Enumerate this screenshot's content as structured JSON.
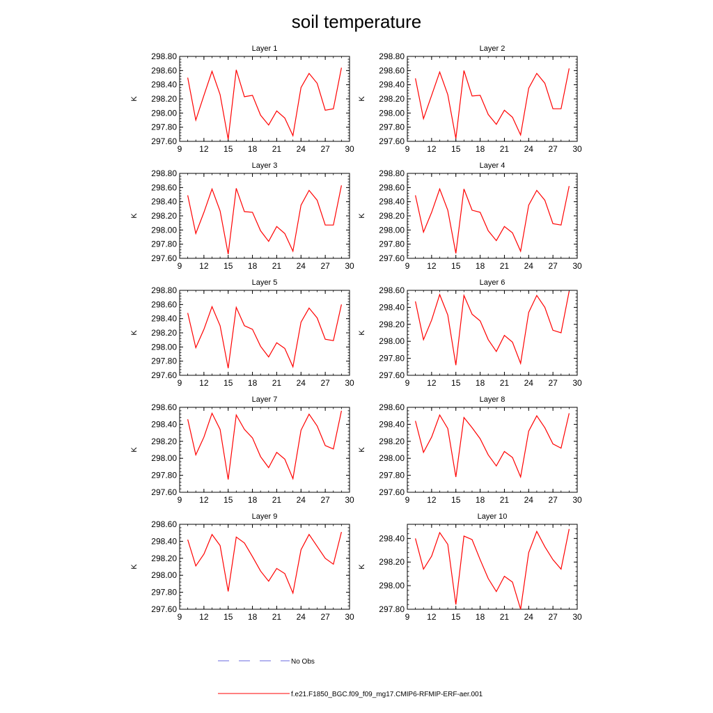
{
  "figure": {
    "title": "soil temperature",
    "legend": [
      {
        "label": "No Obs",
        "color": "#6a6adf",
        "style": "dashed"
      },
      {
        "label": "f.e21.F1850_BGC.f09_f09_mg17.CMIP6-RFMIP-ERF-aer.001",
        "color": "#ff0000",
        "style": "solid"
      }
    ]
  },
  "chart_data": [
    {
      "type": "line",
      "title": "Layer 1",
      "ylabel": "K",
      "xlim": [
        9,
        30
      ],
      "ylim": [
        297.6,
        298.8
      ],
      "xticks": [
        9,
        12,
        15,
        18,
        21,
        24,
        27,
        30
      ],
      "yticks": [
        "297.60",
        "297.80",
        "298.00",
        "298.20",
        "298.40",
        "298.60",
        "298.80"
      ],
      "x": [
        10,
        11,
        12,
        13,
        14,
        15,
        16,
        17,
        18,
        19,
        20,
        21,
        22,
        23,
        24,
        25,
        26,
        27,
        28,
        29
      ],
      "series": [
        {
          "color": "#ff0000",
          "values": [
            298.5,
            297.9,
            298.25,
            298.59,
            298.26,
            297.63,
            298.61,
            298.23,
            298.25,
            297.97,
            297.83,
            298.03,
            297.93,
            297.68,
            298.36,
            298.56,
            298.42,
            298.04,
            298.06,
            298.64
          ]
        }
      ]
    },
    {
      "type": "line",
      "title": "Layer 2",
      "ylabel": "K",
      "xlim": [
        9,
        30
      ],
      "ylim": [
        297.6,
        298.8
      ],
      "xticks": [
        9,
        12,
        15,
        18,
        21,
        24,
        27,
        30
      ],
      "yticks": [
        "297.60",
        "297.80",
        "298.00",
        "298.20",
        "298.40",
        "298.60",
        "298.80"
      ],
      "x": [
        10,
        11,
        12,
        13,
        14,
        15,
        16,
        17,
        18,
        19,
        20,
        21,
        22,
        23,
        24,
        25,
        26,
        27,
        28,
        29
      ],
      "series": [
        {
          "color": "#ff0000",
          "values": [
            298.49,
            297.92,
            298.25,
            298.58,
            298.26,
            297.64,
            298.6,
            298.24,
            298.25,
            297.98,
            297.84,
            298.04,
            297.94,
            297.69,
            298.35,
            298.56,
            298.42,
            298.06,
            298.06,
            298.63
          ]
        }
      ]
    },
    {
      "type": "line",
      "title": "Layer 3",
      "ylabel": "K",
      "xlim": [
        9,
        30
      ],
      "ylim": [
        297.6,
        298.8
      ],
      "xticks": [
        9,
        12,
        15,
        18,
        21,
        24,
        27,
        30
      ],
      "yticks": [
        "297.60",
        "297.80",
        "298.00",
        "298.20",
        "298.40",
        "298.60",
        "298.80"
      ],
      "x": [
        10,
        11,
        12,
        13,
        14,
        15,
        16,
        17,
        18,
        19,
        20,
        21,
        22,
        23,
        24,
        25,
        26,
        27,
        28,
        29
      ],
      "series": [
        {
          "color": "#ff0000",
          "values": [
            298.49,
            297.95,
            298.25,
            298.58,
            298.27,
            297.66,
            298.59,
            298.26,
            298.25,
            297.99,
            297.84,
            298.05,
            297.95,
            297.7,
            298.35,
            298.56,
            298.42,
            298.07,
            298.07,
            298.63
          ]
        }
      ]
    },
    {
      "type": "line",
      "title": "Layer 4",
      "ylabel": "K",
      "xlim": [
        9,
        30
      ],
      "ylim": [
        297.6,
        298.8
      ],
      "xticks": [
        9,
        12,
        15,
        18,
        21,
        24,
        27,
        30
      ],
      "yticks": [
        "297.60",
        "297.80",
        "298.00",
        "298.20",
        "298.40",
        "298.60",
        "298.80"
      ],
      "x": [
        10,
        11,
        12,
        13,
        14,
        15,
        16,
        17,
        18,
        19,
        20,
        21,
        22,
        23,
        24,
        25,
        26,
        27,
        28,
        29
      ],
      "series": [
        {
          "color": "#ff0000",
          "values": [
            298.49,
            297.97,
            298.25,
            298.58,
            298.28,
            297.67,
            298.58,
            298.28,
            298.25,
            297.99,
            297.85,
            298.05,
            297.96,
            297.7,
            298.35,
            298.56,
            298.42,
            298.09,
            298.07,
            298.62
          ]
        }
      ]
    },
    {
      "type": "line",
      "title": "Layer 5",
      "ylabel": "K",
      "xlim": [
        9,
        30
      ],
      "ylim": [
        297.6,
        298.8
      ],
      "xticks": [
        9,
        12,
        15,
        18,
        21,
        24,
        27,
        30
      ],
      "yticks": [
        "297.60",
        "297.80",
        "298.00",
        "298.20",
        "298.40",
        "298.60",
        "298.80"
      ],
      "x": [
        10,
        11,
        12,
        13,
        14,
        15,
        16,
        17,
        18,
        19,
        20,
        21,
        22,
        23,
        24,
        25,
        26,
        27,
        28,
        29
      ],
      "series": [
        {
          "color": "#ff0000",
          "values": [
            298.48,
            297.99,
            298.25,
            298.57,
            298.3,
            297.7,
            298.56,
            298.3,
            298.25,
            298.01,
            297.86,
            298.06,
            297.98,
            297.72,
            298.35,
            298.55,
            298.41,
            298.11,
            298.09,
            298.6
          ]
        }
      ]
    },
    {
      "type": "line",
      "title": "Layer 6",
      "ylabel": "K",
      "xlim": [
        9,
        30
      ],
      "ylim": [
        297.6,
        298.6
      ],
      "xticks": [
        9,
        12,
        15,
        18,
        21,
        24,
        27,
        30
      ],
      "yticks": [
        "297.60",
        "297.80",
        "298.00",
        "298.20",
        "298.40",
        "298.60"
      ],
      "x": [
        10,
        11,
        12,
        13,
        14,
        15,
        16,
        17,
        18,
        19,
        20,
        21,
        22,
        23,
        24,
        25,
        26,
        27,
        28,
        29
      ],
      "series": [
        {
          "color": "#ff0000",
          "values": [
            298.47,
            298.02,
            298.25,
            298.55,
            298.31,
            297.72,
            298.54,
            298.32,
            298.24,
            298.02,
            297.88,
            298.07,
            297.99,
            297.74,
            298.34,
            298.54,
            298.4,
            298.13,
            298.1,
            298.59
          ]
        }
      ]
    },
    {
      "type": "line",
      "title": "Layer 7",
      "ylabel": "K",
      "xlim": [
        9,
        30
      ],
      "ylim": [
        297.6,
        298.6
      ],
      "xticks": [
        9,
        12,
        15,
        18,
        21,
        24,
        27,
        30
      ],
      "yticks": [
        "297.60",
        "297.80",
        "298.00",
        "298.20",
        "298.40",
        "298.60"
      ],
      "x": [
        10,
        11,
        12,
        13,
        14,
        15,
        16,
        17,
        18,
        19,
        20,
        21,
        22,
        23,
        24,
        25,
        26,
        27,
        28,
        29
      ],
      "series": [
        {
          "color": "#ff0000",
          "values": [
            298.46,
            298.04,
            298.25,
            298.53,
            298.34,
            297.75,
            298.51,
            298.34,
            298.24,
            298.02,
            297.89,
            298.07,
            297.99,
            297.76,
            298.33,
            298.52,
            298.38,
            298.15,
            298.11,
            298.56
          ]
        }
      ]
    },
    {
      "type": "line",
      "title": "Layer 8",
      "ylabel": "K",
      "xlim": [
        9,
        30
      ],
      "ylim": [
        297.6,
        298.6
      ],
      "xticks": [
        9,
        12,
        15,
        18,
        21,
        24,
        27,
        30
      ],
      "yticks": [
        "297.60",
        "297.80",
        "298.00",
        "298.20",
        "298.40",
        "298.60"
      ],
      "x": [
        10,
        11,
        12,
        13,
        14,
        15,
        16,
        17,
        18,
        19,
        20,
        21,
        22,
        23,
        24,
        25,
        26,
        27,
        28,
        29
      ],
      "series": [
        {
          "color": "#ff0000",
          "values": [
            298.44,
            298.07,
            298.25,
            298.51,
            298.35,
            297.78,
            298.48,
            298.36,
            298.23,
            298.04,
            297.91,
            298.08,
            298.01,
            297.78,
            298.32,
            298.5,
            298.36,
            298.17,
            298.12,
            298.53
          ]
        }
      ]
    },
    {
      "type": "line",
      "title": "Layer 9",
      "ylabel": "K",
      "xlim": [
        9,
        30
      ],
      "ylim": [
        297.6,
        298.6
      ],
      "xticks": [
        9,
        12,
        15,
        18,
        21,
        24,
        27,
        30
      ],
      "yticks": [
        "297.60",
        "297.80",
        "298.00",
        "298.20",
        "298.40",
        "298.60"
      ],
      "x": [
        10,
        11,
        12,
        13,
        14,
        15,
        16,
        17,
        18,
        19,
        20,
        21,
        22,
        23,
        24,
        25,
        26,
        27,
        28,
        29
      ],
      "series": [
        {
          "color": "#ff0000",
          "values": [
            298.42,
            298.11,
            298.25,
            298.48,
            298.35,
            297.81,
            298.45,
            298.38,
            298.22,
            298.05,
            297.93,
            298.08,
            298.02,
            297.79,
            298.3,
            298.48,
            298.34,
            298.2,
            298.13,
            298.51
          ]
        }
      ]
    },
    {
      "type": "line",
      "title": "Layer 10",
      "ylabel": "K",
      "xlim": [
        9,
        30
      ],
      "ylim": [
        297.8,
        298.52
      ],
      "xticks": [
        9,
        12,
        15,
        18,
        21,
        24,
        27,
        30
      ],
      "yticks": [
        "297.80",
        "298.00",
        "298.20",
        "298.40"
      ],
      "x": [
        10,
        11,
        12,
        13,
        14,
        15,
        16,
        17,
        18,
        19,
        20,
        21,
        22,
        23,
        24,
        25,
        26,
        27,
        28,
        29
      ],
      "series": [
        {
          "color": "#ff0000",
          "values": [
            298.4,
            298.14,
            298.25,
            298.45,
            298.35,
            297.84,
            298.42,
            298.39,
            298.22,
            298.06,
            297.95,
            298.08,
            298.03,
            297.8,
            298.28,
            298.46,
            298.33,
            298.22,
            298.14,
            298.48
          ]
        }
      ]
    }
  ]
}
